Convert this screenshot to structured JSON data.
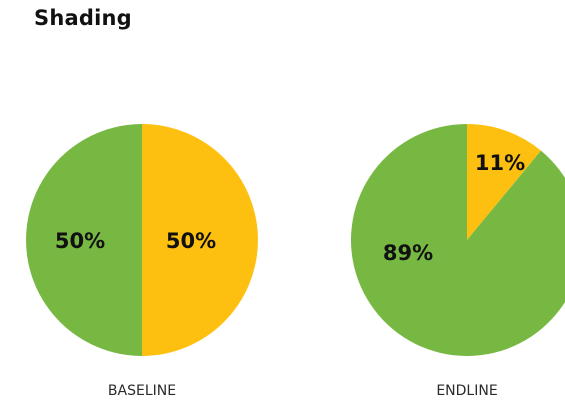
{
  "title": "Shading",
  "colors": {
    "green": "#77b843",
    "yellow": "#fec010"
  },
  "chart_data": [
    {
      "type": "pie",
      "label": "BASELINE",
      "slices": [
        {
          "value": 50,
          "text": "50%",
          "color": "#fec010"
        },
        {
          "value": 50,
          "text": "50%",
          "color": "#77b843"
        }
      ]
    },
    {
      "type": "pie",
      "label": "ENDLINE",
      "slices": [
        {
          "value": 11,
          "text": "11%",
          "color": "#fec010"
        },
        {
          "value": 89,
          "text": "89%",
          "color": "#77b843"
        }
      ]
    }
  ]
}
